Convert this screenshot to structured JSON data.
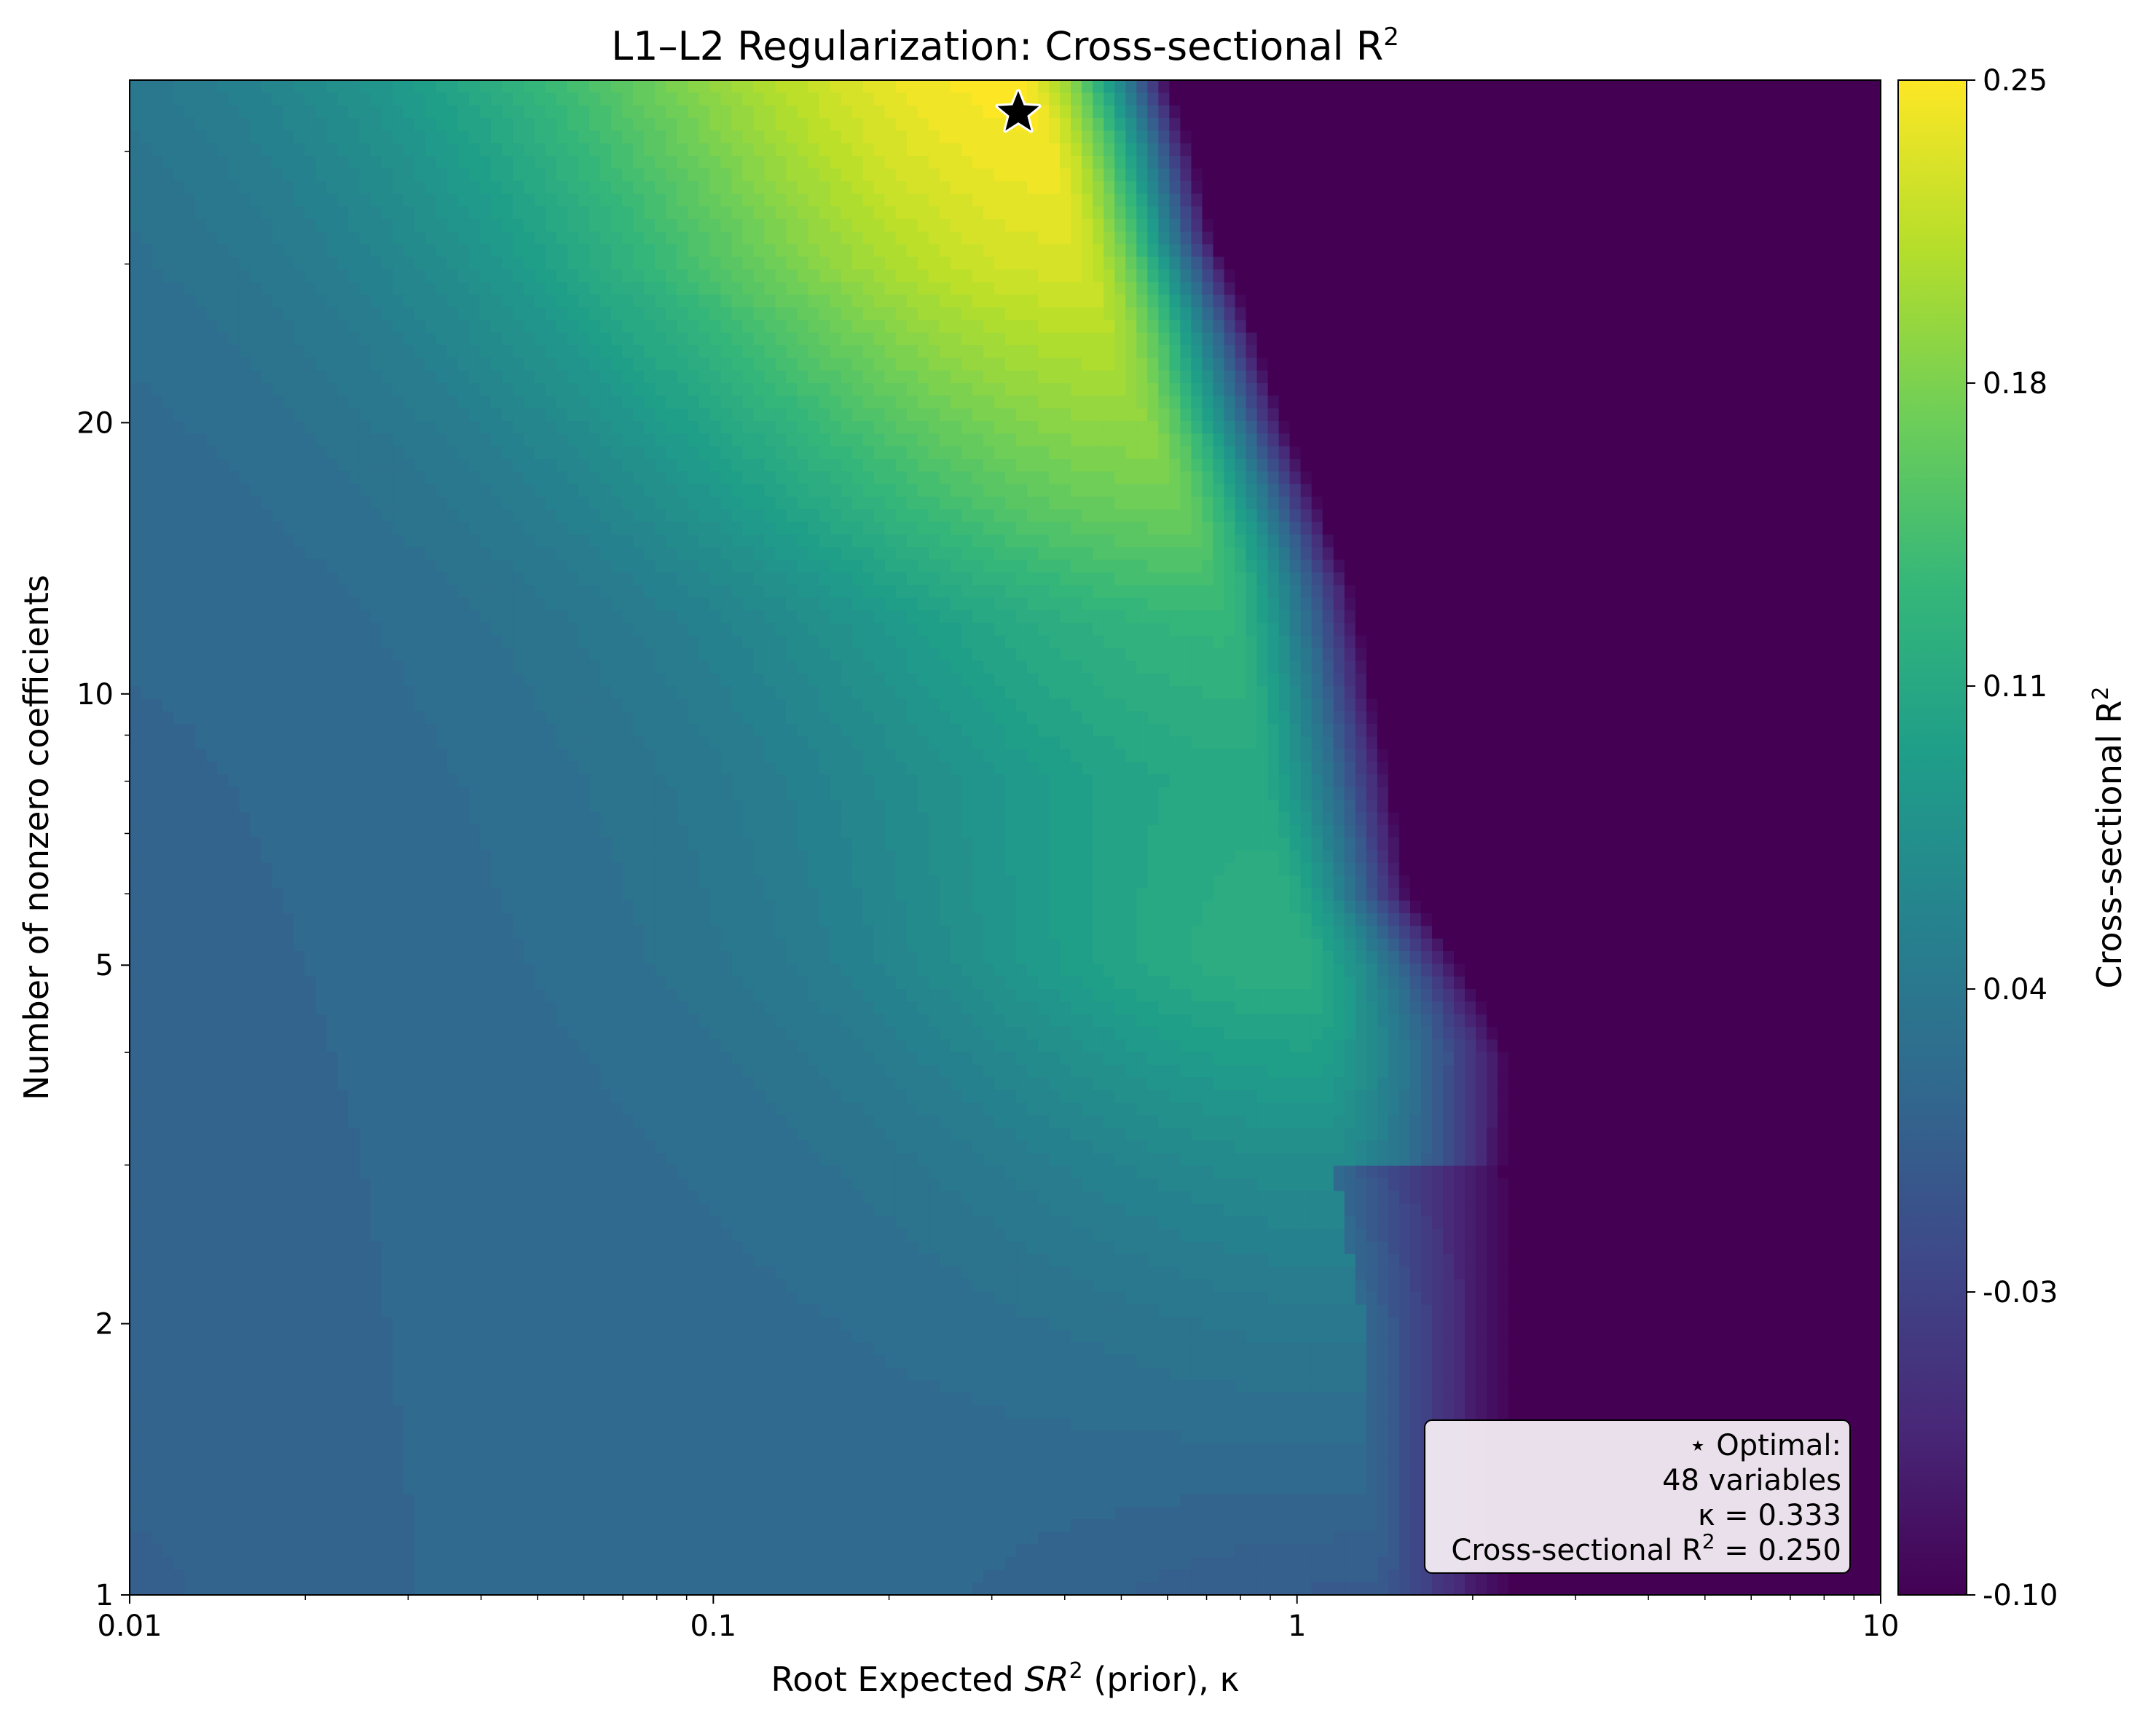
{
  "chart_data": {
    "type": "heatmap",
    "title": "L1–L2 Regularization: Cross-sectional R",
    "title_sup": "2",
    "xlabel_pre": "Root Expected ",
    "xlabel_var": "SR",
    "xlabel_sup": "2",
    "xlabel_post": " (prior), κ",
    "ylabel": "Number of nonzero coefficients",
    "colorbar_label": "Cross-sectional R",
    "colorbar_label_sup": "2",
    "x_scale": "log",
    "y_scale": "log",
    "xlim": [
      0.01,
      10
    ],
    "ylim": [
      1,
      48
    ],
    "zlim": [
      -0.1,
      0.25
    ],
    "colormap": "viridis",
    "x_ticks": [
      {
        "value": 0.01,
        "label": "0.01"
      },
      {
        "value": 0.1,
        "label": "0.1"
      },
      {
        "value": 1,
        "label": "1"
      },
      {
        "value": 10,
        "label": "10"
      }
    ],
    "y_ticks": [
      {
        "value": 1,
        "label": "1"
      },
      {
        "value": 2,
        "label": "2"
      },
      {
        "value": 5,
        "label": "5"
      },
      {
        "value": 10,
        "label": "10"
      },
      {
        "value": 20,
        "label": "20"
      }
    ],
    "colorbar_ticks": [
      {
        "value": 0.25,
        "label": "0.25"
      },
      {
        "value": 0.18,
        "label": "0.18"
      },
      {
        "value": 0.11,
        "label": "0.11"
      },
      {
        "value": 0.04,
        "label": "0.04"
      },
      {
        "value": -0.03,
        "label": "-0.03"
      },
      {
        "value": -0.1,
        "label": "-0.10"
      }
    ],
    "optimum": {
      "kappa": 0.333,
      "n_vars": 48,
      "r2": 0.25
    },
    "legend_position": "bottom-right",
    "annotation_lines": [
      "⋆ Optimal:",
      "48 variables",
      "κ = 0.333",
      "Cross-sectional R",
      "2",
      " = 0.250"
    ],
    "ridge_profile": [
      {
        "n": 1,
        "kappa": 1.3
      },
      {
        "n": 2,
        "kappa": 1.3
      },
      {
        "n": 3,
        "kappa": 1.15
      },
      {
        "n": 5,
        "kappa": 1.0
      },
      {
        "n": 8,
        "kappa": 0.85
      },
      {
        "n": 12,
        "kappa": 0.75
      },
      {
        "n": 16,
        "kappa": 0.62
      },
      {
        "n": 22,
        "kappa": 0.5
      },
      {
        "n": 30,
        "kappa": 0.42
      },
      {
        "n": 40,
        "kappa": 0.37
      },
      {
        "n": 48,
        "kappa": 0.333
      }
    ],
    "ridge_peak": [
      {
        "n": 1,
        "r2": 0.0
      },
      {
        "n": 2,
        "r2": 0.04
      },
      {
        "n": 3,
        "r2": 0.07
      },
      {
        "n": 5,
        "r2": 0.12
      },
      {
        "n": 8,
        "r2": 0.11
      },
      {
        "n": 12,
        "r2": 0.13
      },
      {
        "n": 16,
        "r2": 0.17
      },
      {
        "n": 22,
        "r2": 0.2
      },
      {
        "n": 30,
        "r2": 0.23
      },
      {
        "n": 40,
        "r2": 0.245
      },
      {
        "n": 48,
        "r2": 0.25
      }
    ],
    "plateau_r2": 0.02,
    "cutoff_profile": [
      {
        "n": 1,
        "kappa": 2.3
      },
      {
        "n": 2,
        "kappa": 2.3
      },
      {
        "n": 4,
        "kappa": 2.3
      },
      {
        "n": 5,
        "kappa": 1.9
      },
      {
        "n": 6,
        "kappa": 1.55
      },
      {
        "n": 8,
        "kappa": 1.45
      },
      {
        "n": 10,
        "kappa": 1.35
      },
      {
        "n": 13,
        "kappa": 1.25
      },
      {
        "n": 16,
        "kappa": 1.1
      },
      {
        "n": 20,
        "kappa": 0.95
      },
      {
        "n": 25,
        "kappa": 0.85
      },
      {
        "n": 32,
        "kappa": 0.72
      },
      {
        "n": 40,
        "kappa": 0.66
      },
      {
        "n": 48,
        "kappa": 0.6
      }
    ]
  }
}
